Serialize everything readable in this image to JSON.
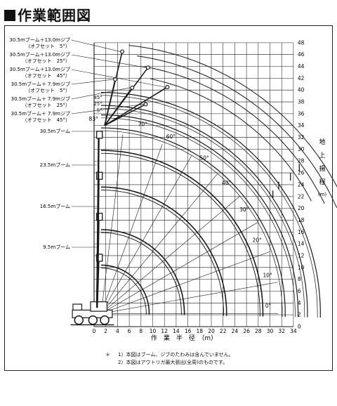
{
  "title": "作業範囲図",
  "booms": [
    {
      "line1": "30.5mブーム＋13.0mジブ",
      "line2": "（オフセット　5°）"
    },
    {
      "line1": "30.5mブーム＋13.0mジブ",
      "line2": "（オフセット　25°）"
    },
    {
      "line1": "30.5mブーム＋13.0mジブ",
      "line2": "（オフセット　45°）"
    },
    {
      "line1": "30.5mブーム＋ 7.9mジブ",
      "line2": "（オフセット　5°）"
    },
    {
      "line1": "30.5mブーム＋ 7.9mジブ",
      "line2": "（オフセット　25°）"
    },
    {
      "line1": "30.5mブーム＋ 7.9mジブ",
      "line2": "（オフセット　45°）"
    },
    {
      "line1": "30.5mブーム",
      "line2": ""
    },
    {
      "line1": "23.5mブーム",
      "line2": ""
    },
    {
      "line1": "16.5mブーム",
      "line2": ""
    },
    {
      "line1": "9.5mブーム",
      "line2": ""
    }
  ],
  "x_axis": {
    "label": "作　業　半　径　（m）",
    "ticks": [
      "0",
      "2",
      "4",
      "6",
      "8",
      "10",
      "12",
      "14",
      "16",
      "18",
      "20",
      "22",
      "24",
      "26",
      "28",
      "30",
      "32",
      "34"
    ]
  },
  "y_axis": {
    "label_chars": [
      "地",
      "上",
      "揚",
      "程"
    ],
    "unit": "(m)",
    "ticks": [
      "0",
      "2",
      "4",
      "6",
      "8",
      "10",
      "12",
      "14",
      "16",
      "18",
      "20",
      "22",
      "24",
      "26",
      "28",
      "30",
      "32",
      "34",
      "36",
      "38",
      "40",
      "42",
      "44",
      "46",
      "48"
    ]
  },
  "angles": [
    "0°",
    "10°",
    "20°",
    "30°",
    "40°",
    "50°",
    "60°",
    "70°",
    "83°"
  ],
  "offset_labels": [
    "45°",
    "25°",
    "5°"
  ],
  "notes": {
    "bullet": "＊",
    "n1": "1）本図はブーム、ジブのたわみは含んでいません。",
    "n2": "2）本図はアウトリガ最大張出(全周)のものです。"
  }
}
